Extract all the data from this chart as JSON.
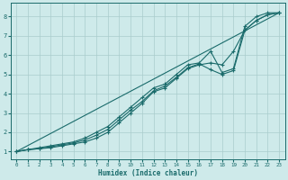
{
  "xlabel": "Humidex (Indice chaleur)",
  "bg_color": "#ceeaea",
  "grid_color": "#aacccc",
  "line_color": "#1a6b6b",
  "xlim": [
    -0.5,
    23.5
  ],
  "ylim": [
    0.6,
    8.7
  ],
  "xticks": [
    0,
    1,
    2,
    3,
    4,
    5,
    6,
    7,
    8,
    9,
    10,
    11,
    12,
    13,
    14,
    15,
    16,
    17,
    18,
    19,
    20,
    21,
    22,
    23
  ],
  "yticks": [
    1,
    2,
    3,
    4,
    5,
    6,
    7,
    8
  ],
  "line1_x": [
    0,
    1,
    2,
    3,
    4,
    5,
    6,
    7,
    8,
    9,
    10,
    11,
    12,
    13,
    14,
    15,
    16,
    17,
    18,
    19,
    20,
    21,
    22,
    23
  ],
  "line1_y": [
    1.0,
    1.1,
    1.15,
    1.2,
    1.3,
    1.4,
    1.5,
    1.7,
    2.0,
    2.5,
    3.0,
    3.5,
    4.1,
    4.3,
    4.8,
    5.3,
    5.5,
    5.6,
    5.5,
    6.2,
    7.3,
    7.8,
    8.1,
    8.2
  ],
  "line2_x": [
    0,
    1,
    2,
    3,
    4,
    5,
    6,
    7,
    8,
    9,
    10,
    11,
    12,
    13,
    14,
    15,
    16,
    17,
    18,
    19,
    20,
    21,
    22,
    23
  ],
  "line2_y": [
    1.0,
    1.1,
    1.15,
    1.25,
    1.35,
    1.45,
    1.6,
    1.85,
    2.15,
    2.65,
    3.15,
    3.6,
    4.15,
    4.4,
    4.85,
    5.35,
    5.55,
    5.25,
    5.0,
    5.2,
    7.3,
    7.8,
    8.1,
    8.2
  ],
  "line3_x": [
    0,
    1,
    2,
    3,
    4,
    5,
    6,
    7,
    8,
    9,
    10,
    11,
    12,
    13,
    14,
    15,
    16,
    17,
    18,
    19,
    20,
    21,
    22,
    23
  ],
  "line3_y": [
    1.0,
    1.1,
    1.2,
    1.3,
    1.4,
    1.5,
    1.7,
    2.0,
    2.3,
    2.8,
    3.3,
    3.8,
    4.3,
    4.5,
    5.0,
    5.5,
    5.6,
    6.2,
    5.1,
    5.3,
    7.5,
    8.0,
    8.2,
    8.2
  ],
  "line4_x": [
    0,
    23
  ],
  "line4_y": [
    1.0,
    8.2
  ]
}
